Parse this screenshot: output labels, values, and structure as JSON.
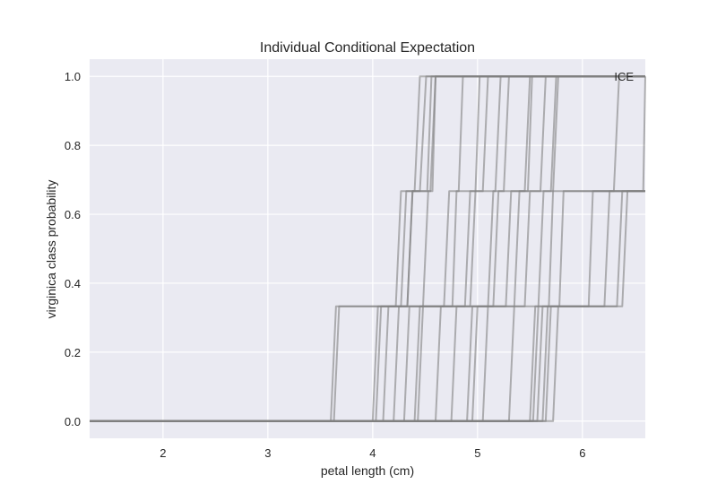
{
  "chart_data": {
    "type": "line",
    "title": "Individual Conditional Expectation",
    "xlabel": "petal length (cm)",
    "ylabel": "virginica class probability",
    "xlim": [
      1.3,
      6.6
    ],
    "ylim": [
      -0.05,
      1.05
    ],
    "xticks": [
      2,
      3,
      4,
      5,
      6
    ],
    "yticks": [
      0.0,
      0.2,
      0.4,
      0.6,
      0.8,
      1.0
    ],
    "ytick_labels": [
      "0.0",
      "0.2",
      "0.4",
      "0.6",
      "0.8",
      "1.0"
    ],
    "grid": true,
    "legend": {
      "placement": "top-right",
      "entries": [
        "ICE"
      ]
    },
    "colors": {
      "plot_background": "#eaeaf2",
      "grid": "#ffffff",
      "lines": "#808080",
      "text": "#262626"
    },
    "series": [
      {
        "values": [
          [
            1.3,
            0
          ],
          [
            3.6,
            0
          ],
          [
            3.65,
            0.333
          ],
          [
            4.22,
            0.333
          ],
          [
            4.27,
            0.667
          ],
          [
            4.4,
            0.667
          ],
          [
            4.45,
            1
          ],
          [
            6.6,
            1
          ]
        ]
      },
      {
        "values": [
          [
            1.3,
            0
          ],
          [
            3.63,
            0
          ],
          [
            3.68,
            0.333
          ],
          [
            4.27,
            0.333
          ],
          [
            4.32,
            0.667
          ],
          [
            4.45,
            0.667
          ],
          [
            4.51,
            1
          ],
          [
            6.6,
            1
          ]
        ]
      },
      {
        "values": [
          [
            1.3,
            0
          ],
          [
            4.03,
            0
          ],
          [
            4.08,
            0.333
          ],
          [
            4.33,
            0.333
          ],
          [
            4.38,
            0.667
          ],
          [
            4.52,
            0.667
          ],
          [
            4.56,
            1
          ],
          [
            6.6,
            1
          ]
        ]
      },
      {
        "values": [
          [
            1.3,
            0
          ],
          [
            4.1,
            0
          ],
          [
            4.15,
            0.333
          ],
          [
            4.48,
            0.333
          ],
          [
            4.53,
            0.667
          ],
          [
            4.57,
            0.667
          ],
          [
            4.6,
            1
          ],
          [
            6.6,
            1
          ]
        ]
      },
      {
        "values": [
          [
            1.3,
            0
          ],
          [
            4.2,
            0
          ],
          [
            4.25,
            0.333
          ],
          [
            4.76,
            0.333
          ],
          [
            4.8,
            0.667
          ],
          [
            4.82,
            0.667
          ],
          [
            4.86,
            1
          ],
          [
            6.6,
            1
          ]
        ]
      },
      {
        "values": [
          [
            1.3,
            0
          ],
          [
            4.3,
            0
          ],
          [
            4.35,
            0.333
          ],
          [
            4.88,
            0.333
          ],
          [
            4.93,
            0.667
          ],
          [
            4.98,
            0.667
          ],
          [
            5.02,
            1
          ],
          [
            6.6,
            1
          ]
        ]
      },
      {
        "values": [
          [
            1.3,
            0
          ],
          [
            4.4,
            0
          ],
          [
            4.45,
            0.333
          ],
          [
            4.93,
            0.333
          ],
          [
            4.98,
            0.667
          ],
          [
            5.05,
            0.667
          ],
          [
            5.1,
            1
          ],
          [
            6.6,
            1
          ]
        ]
      },
      {
        "values": [
          [
            1.3,
            0
          ],
          [
            4.43,
            0
          ],
          [
            4.48,
            0.333
          ],
          [
            4.68,
            0.333
          ],
          [
            4.73,
            0.667
          ],
          [
            5.17,
            0.667
          ],
          [
            5.22,
            1
          ],
          [
            6.6,
            1
          ]
        ]
      },
      {
        "values": [
          [
            1.3,
            0
          ],
          [
            4.6,
            0
          ],
          [
            4.65,
            0.333
          ],
          [
            5.1,
            0.333
          ],
          [
            5.15,
            0.667
          ],
          [
            5.25,
            0.667
          ],
          [
            5.3,
            1
          ],
          [
            6.6,
            1
          ]
        ]
      },
      {
        "values": [
          [
            1.3,
            0
          ],
          [
            4.75,
            0
          ],
          [
            4.8,
            0.333
          ],
          [
            5.27,
            0.333
          ],
          [
            5.32,
            0.667
          ],
          [
            5.45,
            0.667
          ],
          [
            5.5,
            1
          ],
          [
            6.6,
            1
          ]
        ]
      },
      {
        "values": [
          [
            1.3,
            0
          ],
          [
            4.9,
            0
          ],
          [
            4.95,
            0.333
          ],
          [
            5.15,
            0.333
          ],
          [
            5.2,
            0.667
          ],
          [
            5.6,
            0.667
          ],
          [
            5.65,
            1
          ],
          [
            6.6,
            1
          ]
        ]
      },
      {
        "values": [
          [
            1.3,
            0
          ],
          [
            5.05,
            0
          ],
          [
            5.1,
            0.333
          ],
          [
            5.45,
            0.333
          ],
          [
            5.5,
            0.667
          ],
          [
            5.7,
            0.667
          ],
          [
            5.75,
            1
          ],
          [
            6.6,
            1
          ]
        ]
      },
      {
        "values": [
          [
            1.3,
            0
          ],
          [
            5.3,
            0
          ],
          [
            5.35,
            0.333
          ],
          [
            5.58,
            0.333
          ],
          [
            5.63,
            0.667
          ],
          [
            6.3,
            0.667
          ],
          [
            6.35,
            1
          ],
          [
            6.6,
            1
          ]
        ]
      },
      {
        "values": [
          [
            1.3,
            0
          ],
          [
            5.5,
            0
          ],
          [
            5.55,
            0.333
          ],
          [
            5.68,
            0.333
          ],
          [
            5.72,
            0.667
          ],
          [
            5.77,
            1
          ],
          [
            6.6,
            1
          ]
        ]
      },
      {
        "values": [
          [
            1.3,
            0
          ],
          [
            5.53,
            0
          ],
          [
            5.58,
            0.333
          ],
          [
            5.78,
            0.333
          ],
          [
            5.82,
            0.667
          ],
          [
            6.58,
            0.667
          ],
          [
            6.6,
            1
          ]
        ]
      },
      {
        "values": [
          [
            1.3,
            0
          ],
          [
            5.57,
            0
          ],
          [
            5.62,
            0.333
          ],
          [
            6.06,
            0.333
          ],
          [
            6.1,
            0.667
          ],
          [
            6.6,
            0.667
          ]
        ]
      },
      {
        "values": [
          [
            1.3,
            0
          ],
          [
            5.62,
            0
          ],
          [
            5.67,
            0.333
          ],
          [
            6.21,
            0.333
          ],
          [
            6.26,
            0.667
          ],
          [
            6.6,
            0.667
          ]
        ]
      },
      {
        "values": [
          [
            1.3,
            0
          ],
          [
            5.65,
            0
          ],
          [
            5.7,
            0.333
          ],
          [
            6.33,
            0.333
          ],
          [
            6.38,
            0.667
          ],
          [
            6.6,
            0.667
          ]
        ]
      },
      {
        "values": [
          [
            1.3,
            0
          ],
          [
            5.72,
            0
          ],
          [
            5.77,
            0.333
          ],
          [
            6.38,
            0.333
          ],
          [
            6.43,
            0.667
          ],
          [
            6.6,
            0.667
          ]
        ]
      },
      {
        "values": [
          [
            1.3,
            0
          ],
          [
            4.0,
            0
          ],
          [
            4.05,
            0.333
          ],
          [
            4.33,
            0.333
          ],
          [
            4.38,
            0.667
          ],
          [
            4.55,
            0.667
          ],
          [
            4.6,
            1
          ],
          [
            6.6,
            1
          ]
        ]
      },
      {
        "values": [
          [
            1.3,
            0
          ],
          [
            4.95,
            0
          ],
          [
            5.0,
            0.333
          ],
          [
            5.35,
            0.333
          ],
          [
            5.4,
            0.667
          ],
          [
            5.48,
            0.667
          ],
          [
            5.52,
            1
          ],
          [
            6.6,
            1
          ]
        ]
      }
    ]
  }
}
